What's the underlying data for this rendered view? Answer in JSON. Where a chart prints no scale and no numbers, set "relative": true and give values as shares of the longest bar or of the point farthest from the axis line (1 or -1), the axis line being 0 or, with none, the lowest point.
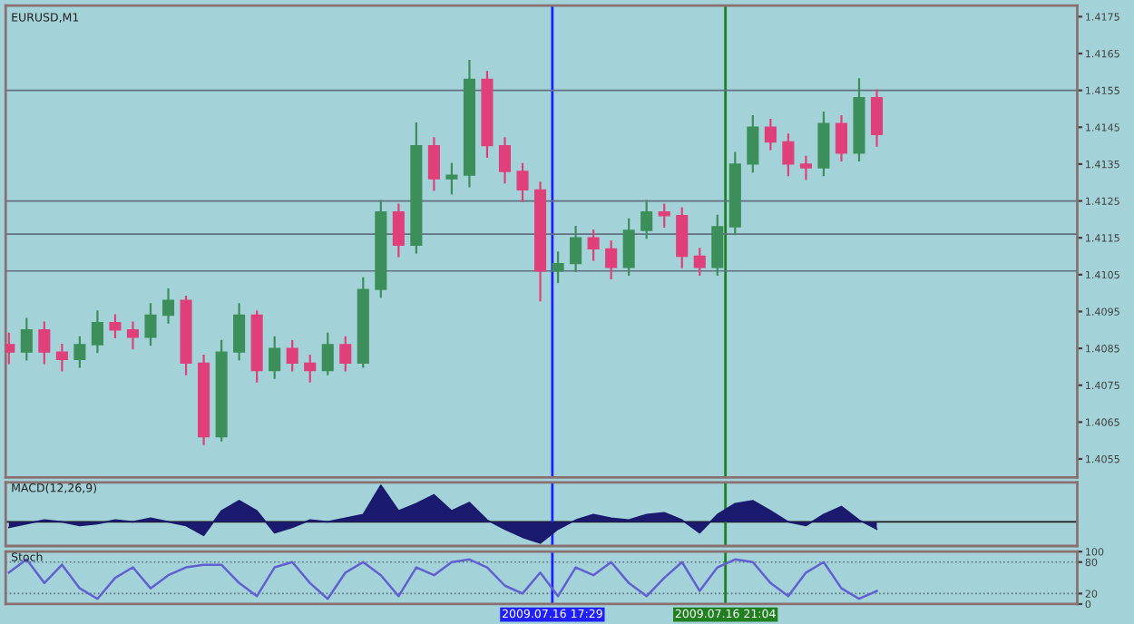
{
  "chart_data": [
    {
      "type": "candlestick",
      "title": "EURUSD,M1",
      "x": [
        "2009-07-16T06:14",
        "2009-07-16T06:36",
        "2009-07-16T06:58",
        "2009-07-16T07:20",
        "2009-07-16T07:42",
        "2009-07-16T08:04",
        "2009-07-16T08:26",
        "2009-07-16T08:48",
        "2009-07-16T09:10",
        "2009-07-16T09:32",
        "2009-07-16T09:54",
        "2009-07-16T10:16",
        "2009-07-16T10:38",
        "2009-07-16T11:00",
        "2009-07-16T11:22",
        "2009-07-16T11:44",
        "2009-07-16T12:06",
        "2009-07-16T12:28",
        "2009-07-16T12:50",
        "2009-07-16T13:12",
        "2009-07-16T13:34",
        "2009-07-16T13:56",
        "2009-07-16T14:18",
        "2009-07-16T14:40",
        "2009-07-16T15:02",
        "2009-07-16T15:24",
        "2009-07-16T15:46",
        "2009-07-16T16:08",
        "2009-07-16T16:30",
        "2009-07-16T16:52",
        "2009-07-16T17:14",
        "2009-07-16T17:36",
        "2009-07-16T17:58",
        "2009-07-16T18:20",
        "2009-07-16T18:42",
        "2009-07-16T19:04",
        "2009-07-16T19:26",
        "2009-07-16T19:48",
        "2009-07-16T20:10",
        "2009-07-16T20:32",
        "2009-07-16T20:54",
        "2009-07-16T21:16",
        "2009-07-16T21:38",
        "2009-07-16T22:00",
        "2009-07-16T22:22",
        "2009-07-16T22:44",
        "2009-07-16T23:06",
        "2009-07-16T23:28",
        "2009-07-16T23:50",
        "2009-07-17T00:12"
      ],
      "ohlc": [
        [
          1.4086,
          1.4089,
          1.4081,
          1.4084
        ],
        [
          1.4084,
          1.4093,
          1.4082,
          1.409
        ],
        [
          1.409,
          1.4092,
          1.4081,
          1.4084
        ],
        [
          1.4084,
          1.4086,
          1.4079,
          1.4082
        ],
        [
          1.4082,
          1.4088,
          1.408,
          1.4086
        ],
        [
          1.4086,
          1.4095,
          1.4084,
          1.4092
        ],
        [
          1.4092,
          1.4094,
          1.4088,
          1.409
        ],
        [
          1.409,
          1.4092,
          1.4085,
          1.4088
        ],
        [
          1.4088,
          1.4097,
          1.4086,
          1.4094
        ],
        [
          1.4094,
          1.4101,
          1.4092,
          1.4098
        ],
        [
          1.4098,
          1.4099,
          1.4078,
          1.4081
        ],
        [
          1.4081,
          1.4083,
          1.4059,
          1.4061
        ],
        [
          1.4061,
          1.4087,
          1.406,
          1.4084
        ],
        [
          1.4084,
          1.4097,
          1.4082,
          1.4094
        ],
        [
          1.4094,
          1.4095,
          1.4076,
          1.4079
        ],
        [
          1.4079,
          1.4088,
          1.4077,
          1.4085
        ],
        [
          1.4085,
          1.4087,
          1.4079,
          1.4081
        ],
        [
          1.4081,
          1.4083,
          1.4076,
          1.4079
        ],
        [
          1.4079,
          1.4089,
          1.4078,
          1.4086
        ],
        [
          1.4086,
          1.4088,
          1.4079,
          1.4081
        ],
        [
          1.4081,
          1.4104,
          1.408,
          1.4101
        ],
        [
          1.4101,
          1.4125,
          1.4099,
          1.4122
        ],
        [
          1.4122,
          1.4124,
          1.411,
          1.4113
        ],
        [
          1.4113,
          1.4146,
          1.4111,
          1.414
        ],
        [
          1.414,
          1.4142,
          1.4128,
          1.4131
        ],
        [
          1.4131,
          1.4135,
          1.4127,
          1.4132
        ],
        [
          1.4132,
          1.4163,
          1.4129,
          1.4158
        ],
        [
          1.4158,
          1.416,
          1.4137,
          1.414
        ],
        [
          1.414,
          1.4142,
          1.413,
          1.4133
        ],
        [
          1.4133,
          1.4135,
          1.4125,
          1.4128
        ],
        [
          1.4128,
          1.413,
          1.4098,
          1.4106
        ],
        [
          1.4106,
          1.4111,
          1.4103,
          1.4108
        ],
        [
          1.4108,
          1.4118,
          1.4106,
          1.4115
        ],
        [
          1.4115,
          1.4117,
          1.4109,
          1.4112
        ],
        [
          1.4112,
          1.4114,
          1.4104,
          1.4107
        ],
        [
          1.4107,
          1.412,
          1.4105,
          1.4117
        ],
        [
          1.4117,
          1.4125,
          1.4115,
          1.4122
        ],
        [
          1.4122,
          1.4124,
          1.4118,
          1.4121
        ],
        [
          1.4121,
          1.4123,
          1.4107,
          1.411
        ],
        [
          1.411,
          1.4112,
          1.4105,
          1.4107
        ],
        [
          1.4107,
          1.4121,
          1.4105,
          1.4118
        ],
        [
          1.4118,
          1.4138,
          1.4116,
          1.4135
        ],
        [
          1.4135,
          1.4148,
          1.4133,
          1.4145
        ],
        [
          1.4145,
          1.4147,
          1.4139,
          1.4141
        ],
        [
          1.4141,
          1.4143,
          1.4132,
          1.4135
        ],
        [
          1.4135,
          1.4137,
          1.4131,
          1.4134
        ],
        [
          1.4134,
          1.4149,
          1.4132,
          1.4146
        ],
        [
          1.4146,
          1.4148,
          1.4136,
          1.4138
        ],
        [
          1.4138,
          1.4158,
          1.4136,
          1.4153
        ],
        [
          1.4153,
          1.4155,
          1.414,
          1.4143
        ]
      ],
      "colors": [
        "#e0407a",
        "#3c8f5a",
        "#e0407a",
        "#e0407a",
        "#3c8f5a",
        "#3c8f5a",
        "#e0407a",
        "#e0407a",
        "#3c8f5a",
        "#3c8f5a",
        "#e0407a",
        "#e0407a",
        "#3c8f5a",
        "#3c8f5a",
        "#e0407a",
        "#3c8f5a",
        "#e0407a",
        "#e0407a",
        "#3c8f5a",
        "#e0407a",
        "#3c8f5a",
        "#3c8f5a",
        "#e0407a",
        "#3c8f5a",
        "#e0407a",
        "#3c8f5a",
        "#3c8f5a",
        "#e0407a",
        "#e0407a",
        "#e0407a",
        "#e0407a",
        "#3c8f5a",
        "#3c8f5a",
        "#e0407a",
        "#e0407a",
        "#3c8f5a",
        "#3c8f5a",
        "#e0407a",
        "#e0407a",
        "#e0407a",
        "#3c8f5a",
        "#3c8f5a",
        "#3c8f5a",
        "#e0407a",
        "#e0407a",
        "#e0407a",
        "#3c8f5a",
        "#e0407a",
        "#3c8f5a",
        "#e0407a"
      ],
      "xlim": [
        "2009-07-16T06:10",
        "2009-07-17T04:21"
      ],
      "ylim": [
        1.405,
        1.4178
      ],
      "yticks": [
        1.4055,
        1.4065,
        1.4075,
        1.4085,
        1.4095,
        1.4105,
        1.4115,
        1.4125,
        1.4135,
        1.4145,
        1.4155,
        1.4165,
        1.4175
      ],
      "tick_labels": "y",
      "ref_lines": [
        {
          "axis": "x",
          "value": "2009-07-16T17:29",
          "color": "#2020ff"
        },
        {
          "axis": "x",
          "value": "2009-07-16T21:04",
          "color": "#208020"
        },
        {
          "axis": "y",
          "value": 1.4155,
          "color": "#607080"
        },
        {
          "axis": "y",
          "value": 1.4125,
          "color": "#607080"
        },
        {
          "axis": "y",
          "value": 1.4116,
          "color": "#607080"
        },
        {
          "axis": "y",
          "value": 1.4106,
          "color": "#607080"
        }
      ]
    },
    {
      "type": "area",
      "title": "MACD(12,26,9)",
      "relative": true,
      "x": [
        "2009-07-16T06:14",
        "2009-07-16T06:36",
        "2009-07-16T06:58",
        "2009-07-16T07:20",
        "2009-07-16T07:42",
        "2009-07-16T08:04",
        "2009-07-16T08:26",
        "2009-07-16T08:48",
        "2009-07-16T09:10",
        "2009-07-16T09:32",
        "2009-07-16T09:54",
        "2009-07-16T10:16",
        "2009-07-16T10:38",
        "2009-07-16T11:00",
        "2009-07-16T11:22",
        "2009-07-16T11:44",
        "2009-07-16T12:06",
        "2009-07-16T12:28",
        "2009-07-16T12:50",
        "2009-07-16T13:12",
        "2009-07-16T13:34",
        "2009-07-16T13:56",
        "2009-07-16T14:18",
        "2009-07-16T14:40",
        "2009-07-16T15:02",
        "2009-07-16T15:24",
        "2009-07-16T15:46",
        "2009-07-16T16:08",
        "2009-07-16T16:30",
        "2009-07-16T16:52",
        "2009-07-16T17:14",
        "2009-07-16T17:36",
        "2009-07-16T17:58",
        "2009-07-16T18:20",
        "2009-07-16T18:42",
        "2009-07-16T19:04",
        "2009-07-16T19:26",
        "2009-07-16T19:48",
        "2009-07-16T20:10",
        "2009-07-16T20:32",
        "2009-07-16T20:54",
        "2009-07-16T21:16",
        "2009-07-16T21:38",
        "2009-07-16T22:00",
        "2009-07-16T22:22",
        "2009-07-16T22:44",
        "2009-07-16T23:06",
        "2009-07-16T23:28",
        "2009-07-16T23:50",
        "2009-07-17T00:12"
      ],
      "xlim": [
        "2009-07-16T06:10",
        "2009-07-17T04:21"
      ],
      "tick_labels": false,
      "series": [
        {
          "color": "#1a1a6e",
          "values": [
            -0.15,
            -0.05,
            0.05,
            0.0,
            -0.1,
            -0.05,
            0.05,
            0.0,
            0.1,
            0.0,
            -0.1,
            -0.37,
            0.3,
            0.58,
            0.3,
            -0.3,
            -0.15,
            0.05,
            0.0,
            0.1,
            0.2,
            1.0,
            0.3,
            0.5,
            0.74,
            0.3,
            0.53,
            0.05,
            -0.2,
            -0.42,
            -0.58,
            -0.2,
            0.05,
            0.2,
            0.1,
            0.05,
            0.2,
            0.25,
            0.05,
            -0.3,
            0.2,
            0.5,
            0.58,
            0.3,
            0.0,
            -0.1,
            0.2,
            0.42,
            0.05,
            -0.2
          ]
        }
      ],
      "ref_lines": [
        {
          "axis": "x",
          "value": "2009-07-16T17:29",
          "color": "#2020ff"
        },
        {
          "axis": "x",
          "value": "2009-07-16T21:04",
          "color": "#208020"
        }
      ]
    },
    {
      "type": "line",
      "title": "Stoch",
      "x": [
        "2009-07-16T06:14",
        "2009-07-16T06:36",
        "2009-07-16T06:58",
        "2009-07-16T07:20",
        "2009-07-16T07:42",
        "2009-07-16T08:04",
        "2009-07-16T08:26",
        "2009-07-16T08:48",
        "2009-07-16T09:10",
        "2009-07-16T09:32",
        "2009-07-16T09:54",
        "2009-07-16T10:16",
        "2009-07-16T10:38",
        "2009-07-16T11:00",
        "2009-07-16T11:22",
        "2009-07-16T11:44",
        "2009-07-16T12:06",
        "2009-07-16T12:28",
        "2009-07-16T12:50",
        "2009-07-16T13:12",
        "2009-07-16T13:34",
        "2009-07-16T13:56",
        "2009-07-16T14:18",
        "2009-07-16T14:40",
        "2009-07-16T15:02",
        "2009-07-16T15:24",
        "2009-07-16T15:46",
        "2009-07-16T16:08",
        "2009-07-16T16:30",
        "2009-07-16T16:52",
        "2009-07-16T17:14",
        "2009-07-16T17:36",
        "2009-07-16T17:58",
        "2009-07-16T18:20",
        "2009-07-16T18:42",
        "2009-07-16T19:04",
        "2009-07-16T19:26",
        "2009-07-16T19:48",
        "2009-07-16T20:10",
        "2009-07-16T20:32",
        "2009-07-16T20:54",
        "2009-07-16T21:16",
        "2009-07-16T21:38",
        "2009-07-16T22:00",
        "2009-07-16T22:22",
        "2009-07-16T22:44",
        "2009-07-16T23:06",
        "2009-07-16T23:28",
        "2009-07-16T23:50",
        "2009-07-17T00:12"
      ],
      "xlim": [
        "2009-07-16T06:10",
        "2009-07-17T04:21"
      ],
      "xticks": [
        {
          "value": "2009-07-16T17:29",
          "label": "2009.07.16 17:29"
        },
        {
          "value": "2009-07-16T21:04",
          "label": "2009.07.16 21:04"
        }
      ],
      "ylim": [
        0,
        100
      ],
      "yticks": [
        0,
        20,
        80,
        100
      ],
      "series": [
        {
          "color": "#6060d0",
          "values": [
            60,
            85,
            40,
            75,
            30,
            10,
            50,
            70,
            30,
            55,
            70,
            75,
            75,
            40,
            15,
            70,
            80,
            40,
            10,
            60,
            80,
            55,
            15,
            70,
            55,
            80,
            85,
            70,
            35,
            20,
            60,
            15,
            70,
            55,
            80,
            40,
            15,
            50,
            80,
            25,
            70,
            85,
            80,
            40,
            15,
            60,
            80,
            30,
            10,
            25
          ]
        }
      ],
      "ref_lines": [
        {
          "axis": "y",
          "value": 20,
          "color": "#607080",
          "line_style": "dotted"
        },
        {
          "axis": "y",
          "value": 80,
          "color": "#607080",
          "line_style": "dotted"
        },
        {
          "axis": "x",
          "value": "2009-07-16T17:29",
          "color": "#2020ff"
        },
        {
          "axis": "x",
          "value": "2009-07-16T21:04",
          "color": "#208020"
        }
      ]
    }
  ]
}
